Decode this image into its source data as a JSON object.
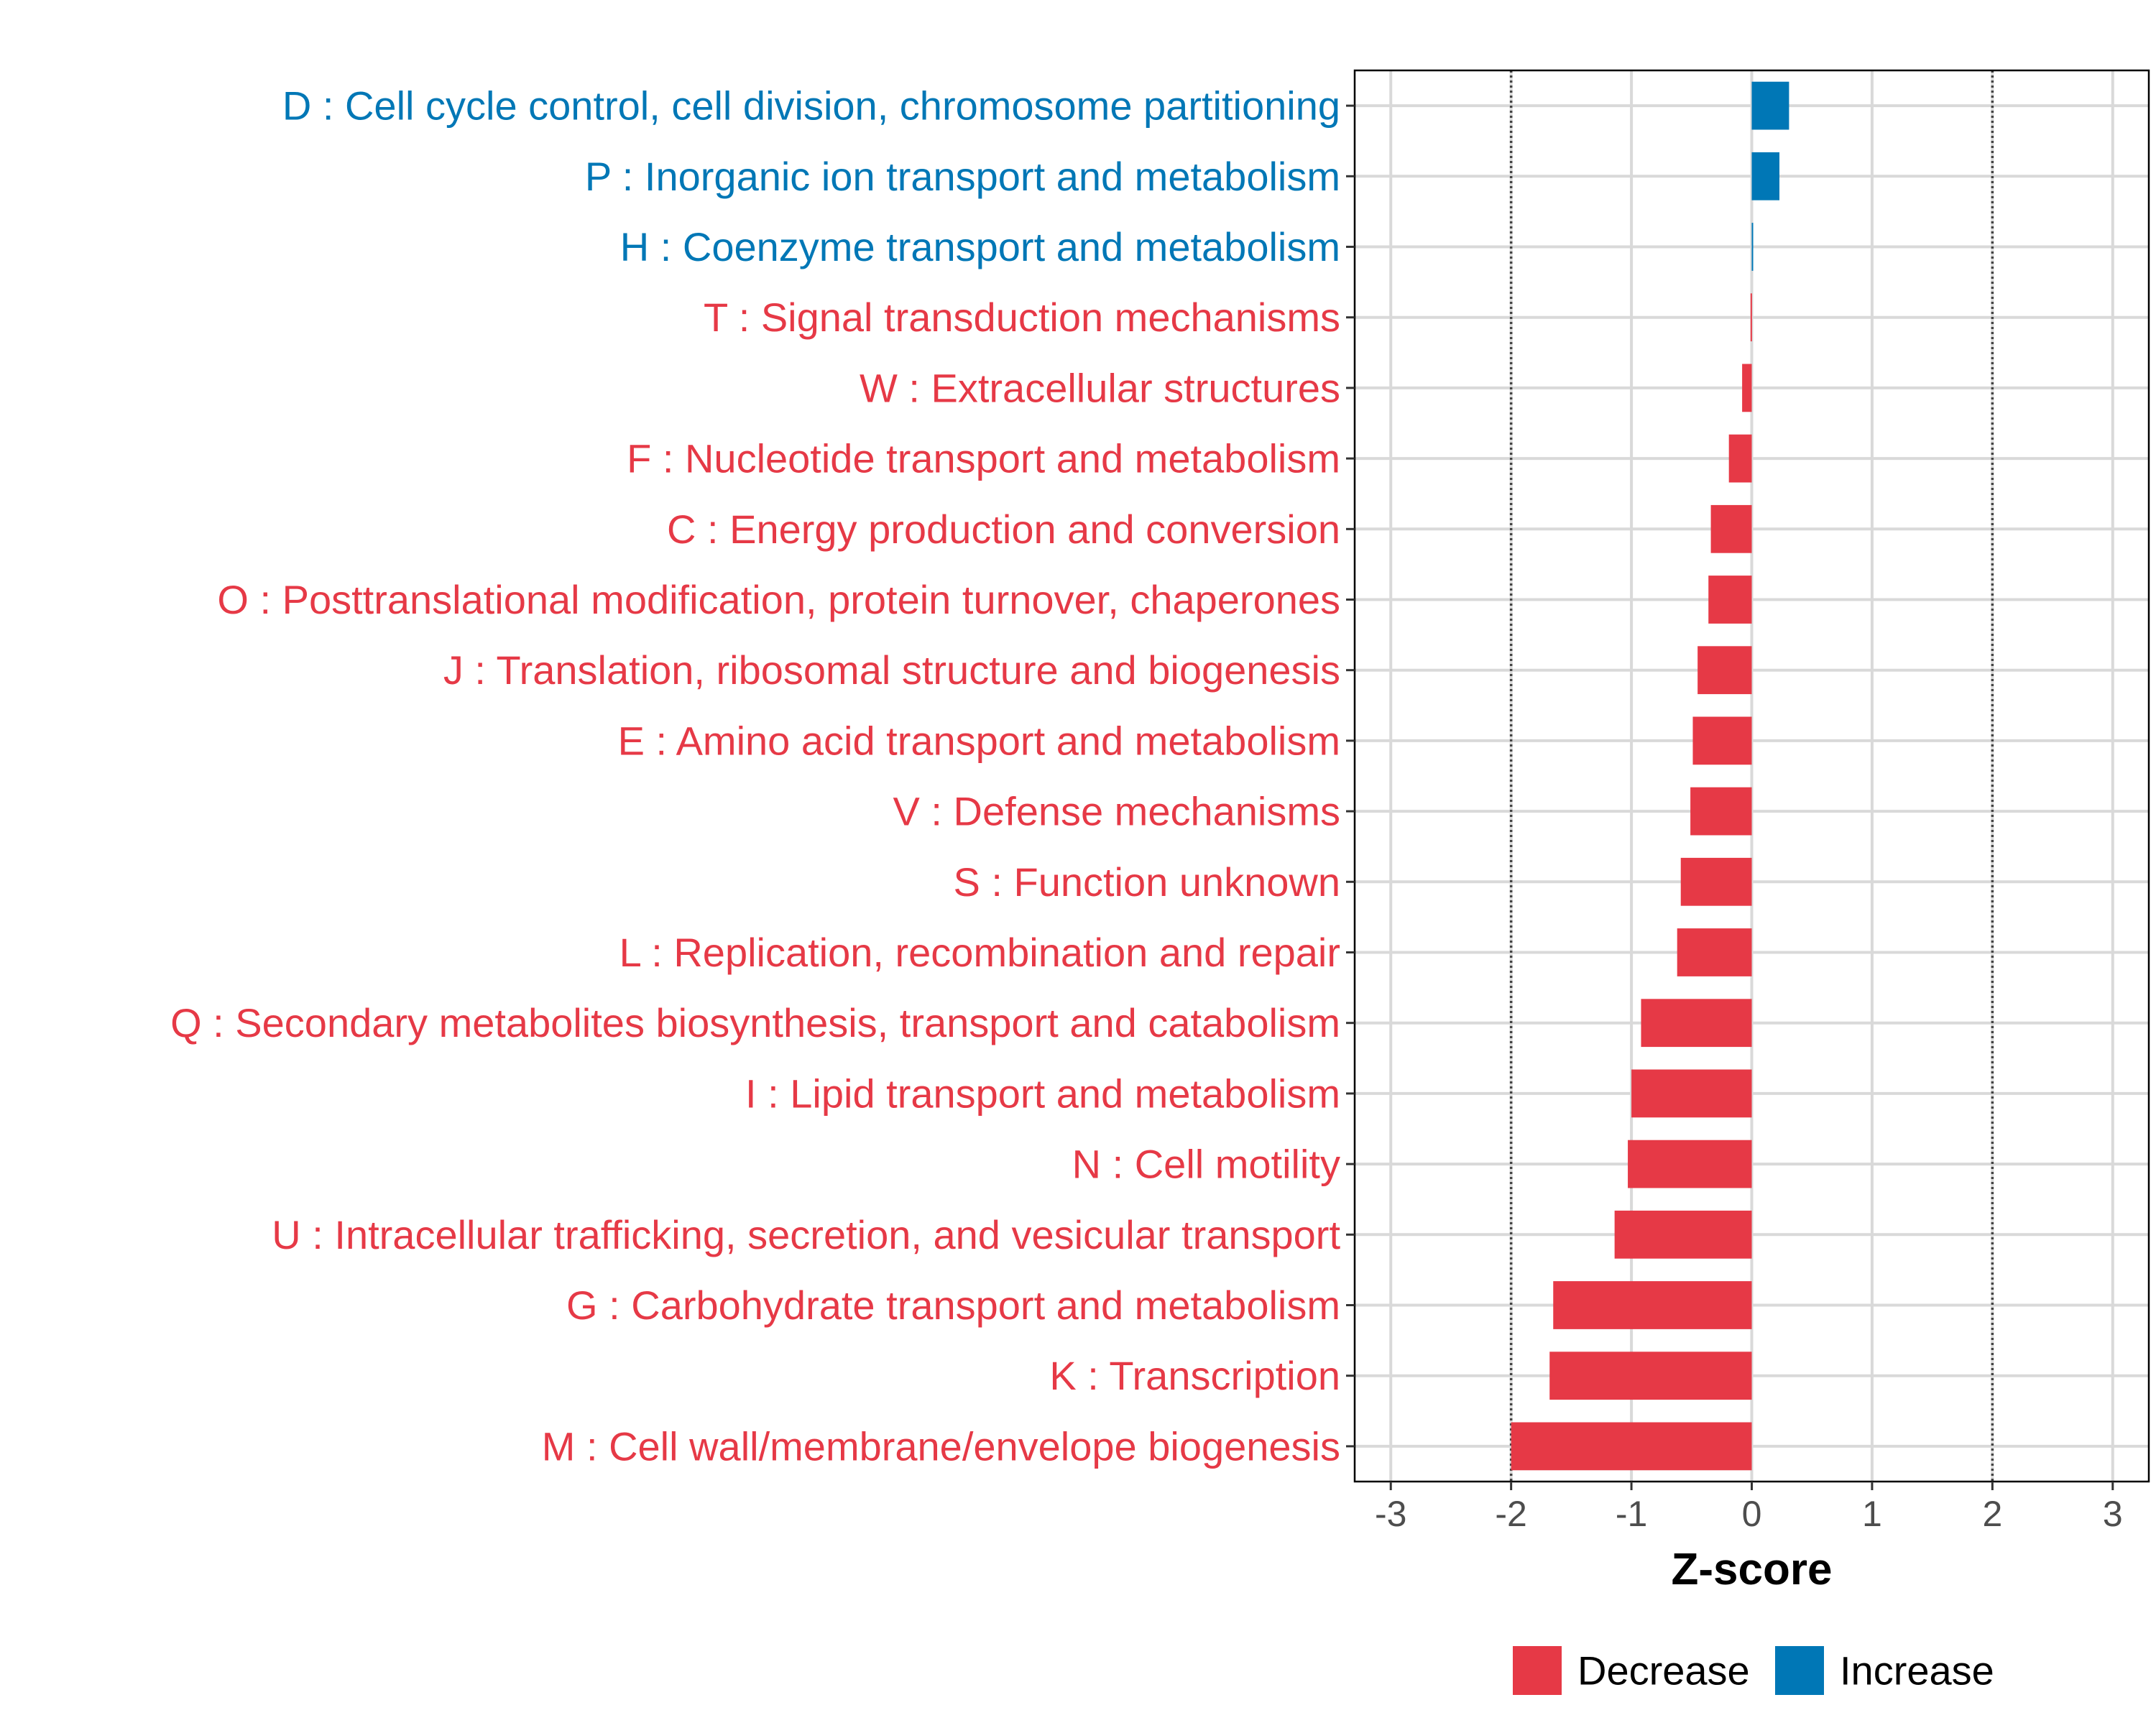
{
  "chart_data": {
    "type": "bar",
    "orientation": "horizontal",
    "xlabel": "Z-score",
    "xlim": [
      -3.3,
      3.3
    ],
    "x_ticks": [
      -3,
      -2,
      -1,
      0,
      1,
      2,
      3
    ],
    "x_tick_labels": [
      "-3",
      "-2",
      "-1",
      "0",
      "1",
      "2",
      "3"
    ],
    "reference_lines": [
      -2,
      2
    ],
    "grid": true,
    "colors": {
      "Decrease": "#e63946",
      "Increase": "#0077b6"
    },
    "categories": [
      "D : Cell cycle control, cell division, chromosome partitioning",
      "P : Inorganic ion transport and metabolism",
      "H : Coenzyme transport and metabolism",
      "T : Signal transduction mechanisms",
      "W : Extracellular structures",
      "F : Nucleotide transport and metabolism",
      "C : Energy production and conversion",
      "O : Posttranslational modification, protein turnover, chaperones",
      "J : Translation, ribosomal structure and biogenesis",
      "E : Amino acid transport and metabolism",
      "V : Defense mechanisms",
      "S : Function unknown",
      "L : Replication, recombination and repair",
      "Q : Secondary metabolites biosynthesis, transport and catabolism",
      "I : Lipid transport and metabolism",
      "N : Cell motility",
      "U : Intracellular trafficking, secretion, and vesicular transport",
      "G : Carbohydrate transport and metabolism",
      "K : Transcription",
      "M : Cell wall/membrane/envelope biogenesis"
    ],
    "values": [
      0.31,
      0.23,
      0.01,
      -0.01,
      -0.08,
      -0.19,
      -0.34,
      -0.36,
      -0.45,
      -0.49,
      -0.51,
      -0.59,
      -0.62,
      -0.92,
      -1.0,
      -1.03,
      -1.14,
      -1.65,
      -1.68,
      -2.0
    ],
    "groups": [
      "Increase",
      "Increase",
      "Increase",
      "Decrease",
      "Decrease",
      "Decrease",
      "Decrease",
      "Decrease",
      "Decrease",
      "Decrease",
      "Decrease",
      "Decrease",
      "Decrease",
      "Decrease",
      "Decrease",
      "Decrease",
      "Decrease",
      "Decrease",
      "Decrease",
      "Decrease"
    ],
    "legend": {
      "position": "bottom",
      "entries": [
        {
          "label": "Decrease",
          "group": "Decrease"
        },
        {
          "label": "Increase",
          "group": "Increase"
        }
      ]
    }
  }
}
